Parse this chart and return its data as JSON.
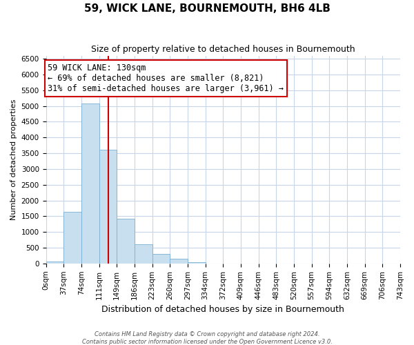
{
  "title": "59, WICK LANE, BOURNEMOUTH, BH6 4LB",
  "subtitle": "Size of property relative to detached houses in Bournemouth",
  "xlabel": "Distribution of detached houses by size in Bournemouth",
  "ylabel": "Number of detached properties",
  "bin_edges": [
    0,
    37,
    74,
    111,
    148,
    185,
    222,
    259,
    296,
    333,
    370,
    407,
    444,
    481,
    518,
    555,
    592,
    629,
    666,
    703,
    740
  ],
  "bin_labels": [
    "0sqm",
    "37sqm",
    "74sqm",
    "111sqm",
    "149sqm",
    "186sqm",
    "223sqm",
    "260sqm",
    "297sqm",
    "334sqm",
    "372sqm",
    "409sqm",
    "446sqm",
    "483sqm",
    "520sqm",
    "557sqm",
    "594sqm",
    "632sqm",
    "669sqm",
    "706sqm",
    "743sqm"
  ],
  "bar_heights": [
    70,
    1650,
    5070,
    3600,
    1420,
    610,
    300,
    150,
    50,
    0,
    0,
    0,
    0,
    0,
    0,
    0,
    0,
    0,
    0,
    0
  ],
  "bar_color": "#c8dff0",
  "bar_edgecolor": "#7ab0d4",
  "vline_x": 130,
  "vline_color": "#cc0000",
  "annotation_line1": "59 WICK LANE: 130sqm",
  "annotation_line2": "← 69% of detached houses are smaller (8,821)",
  "annotation_line3": "31% of semi-detached houses are larger (3,961) →",
  "box_edgecolor": "#cc0000",
  "ylim": [
    0,
    6600
  ],
  "yticks": [
    0,
    500,
    1000,
    1500,
    2000,
    2500,
    3000,
    3500,
    4000,
    4500,
    5000,
    5500,
    6000,
    6500
  ],
  "footer1": "Contains HM Land Registry data © Crown copyright and database right 2024.",
  "footer2": "Contains public sector information licensed under the Open Government Licence v3.0.",
  "bg_color": "#ffffff",
  "grid_color": "#c8d4e8",
  "title_fontsize": 11,
  "subtitle_fontsize": 9,
  "xlabel_fontsize": 9,
  "ylabel_fontsize": 8,
  "tick_fontsize": 7.5,
  "annotation_fontsize": 8.5
}
